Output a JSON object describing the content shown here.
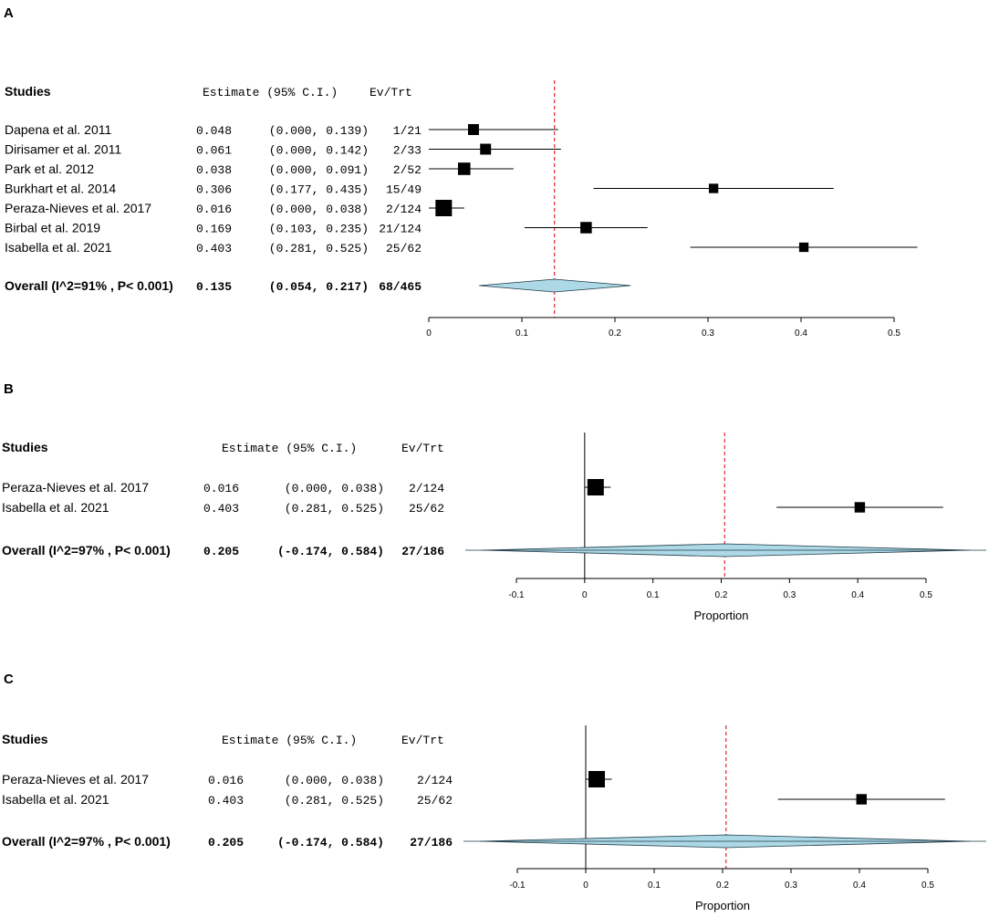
{
  "colors": {
    "ci_line": "#000000",
    "marker": "#000000",
    "reference_line": "#e8202a",
    "diamond_fill": "#add8e6",
    "diamond_stroke": "#1f3b47"
  },
  "chart_data": [
    {
      "type": "forest",
      "panel_label": "A",
      "headers": {
        "studies": "Studies",
        "estimate": "Estimate (95% C.I.)",
        "events": "Ev/Trt"
      },
      "studies": [
        {
          "name": "Dapena et al. 2011",
          "estimate": 0.048,
          "lower": 0.0,
          "upper": 0.139,
          "estimate_text": "0.048",
          "ci_text": "(0.000, 0.139)",
          "events": "1/21",
          "weight": 0.45
        },
        {
          "name": "Dirisamer et al. 2011",
          "estimate": 0.061,
          "lower": 0.0,
          "upper": 0.142,
          "estimate_text": "0.061",
          "ci_text": "(0.000, 0.142)",
          "events": "2/33",
          "weight": 0.45
        },
        {
          "name": "Park et al. 2012",
          "estimate": 0.038,
          "lower": 0.0,
          "upper": 0.091,
          "estimate_text": "0.038",
          "ci_text": "(0.000, 0.091)",
          "events": "2/52",
          "weight": 0.6
        },
        {
          "name": "Burkhart et al. 2014",
          "estimate": 0.306,
          "lower": 0.177,
          "upper": 0.435,
          "estimate_text": "0.306",
          "ci_text": "(0.177, 0.435)",
          "events": "15/49",
          "weight": 0.3
        },
        {
          "name": "Peraza-Nieves et al. 2017",
          "estimate": 0.016,
          "lower": 0.0,
          "upper": 0.038,
          "estimate_text": "0.016",
          "ci_text": "(0.000, 0.038)",
          "events": "2/124",
          "weight": 1.0
        },
        {
          "name": "Birbal et al. 2019",
          "estimate": 0.169,
          "lower": 0.103,
          "upper": 0.235,
          "estimate_text": "0.169",
          "ci_text": "(0.103, 0.235)",
          "events": "21/124",
          "weight": 0.5
        },
        {
          "name": "Isabella et al. 2021",
          "estimate": 0.403,
          "lower": 0.281,
          "upper": 0.525,
          "estimate_text": "0.403",
          "ci_text": "(0.281, 0.525)",
          "events": "25/62",
          "weight": 0.3
        }
      ],
      "overall": {
        "label": "Overall (I^2=91% , P< 0.001)",
        "estimate": 0.135,
        "lower": 0.054,
        "upper": 0.217,
        "estimate_text": "0.135",
        "ci_text": "(0.054, 0.217)",
        "events": "68/465"
      },
      "reference_line": 0.135,
      "x_ticks": [
        0,
        0.1,
        0.2,
        0.3,
        0.4,
        0.5
      ],
      "x_tick_labels": [
        "0",
        "0.1",
        "0.2",
        "0.3",
        "0.4",
        "0.5"
      ],
      "xlim": [
        0,
        0.5
      ],
      "xlabel": "",
      "zero_line": false
    },
    {
      "type": "forest",
      "panel_label": "B",
      "headers": {
        "studies": "Studies",
        "estimate": "Estimate (95% C.I.)",
        "events": "Ev/Trt"
      },
      "studies": [
        {
          "name": "Peraza-Nieves et al. 2017",
          "estimate": 0.016,
          "lower": 0.0,
          "upper": 0.038,
          "estimate_text": "0.016",
          "ci_text": "(0.000, 0.038)",
          "events": "2/124",
          "weight": 1.0
        },
        {
          "name": "Isabella et al. 2021",
          "estimate": 0.403,
          "lower": 0.281,
          "upper": 0.525,
          "estimate_text": "0.403",
          "ci_text": "(0.281, 0.525)",
          "events": "25/62",
          "weight": 0.4
        }
      ],
      "overall": {
        "label": "Overall (I^2=97% , P< 0.001)",
        "estimate": 0.205,
        "lower": -0.174,
        "upper": 0.584,
        "estimate_text": "0.205",
        "ci_text": "(-0.174, 0.584)",
        "events": "27/186"
      },
      "reference_line": 0.205,
      "x_ticks": [
        -0.1,
        0,
        0.1,
        0.2,
        0.3,
        0.4,
        0.5
      ],
      "x_tick_labels": [
        "-0.1",
        "0",
        "0.1",
        "0.2",
        "0.3",
        "0.4",
        "0.5"
      ],
      "xlim": [
        -0.1,
        0.5
      ],
      "xlabel": "Proportion",
      "zero_line": true
    },
    {
      "type": "forest",
      "panel_label": "C",
      "headers": {
        "studies": "Studies",
        "estimate": "Estimate (95% C.I.)",
        "events": "Ev/Trt"
      },
      "studies": [
        {
          "name": "Peraza-Nieves et al. 2017",
          "estimate": 0.016,
          "lower": 0.0,
          "upper": 0.038,
          "estimate_text": "0.016",
          "ci_text": "(0.000, 0.038)",
          "events": "2/124",
          "weight": 1.0
        },
        {
          "name": "Isabella et al. 2021",
          "estimate": 0.403,
          "lower": 0.281,
          "upper": 0.525,
          "estimate_text": "0.403",
          "ci_text": "(0.281, 0.525)",
          "events": "25/62",
          "weight": 0.4
        }
      ],
      "overall": {
        "label": "Overall (I^2=97% , P< 0.001)",
        "estimate": 0.205,
        "lower": -0.174,
        "upper": 0.584,
        "estimate_text": "0.205",
        "ci_text": "(-0.174, 0.584)",
        "events": "27/186"
      },
      "reference_line": 0.205,
      "x_ticks": [
        -0.1,
        0,
        0.1,
        0.2,
        0.3,
        0.4,
        0.5
      ],
      "x_tick_labels": [
        "-0.1",
        "0",
        "0.1",
        "0.2",
        "0.3",
        "0.4",
        "0.5"
      ],
      "xlim": [
        -0.1,
        0.5
      ],
      "xlabel": "Proportion",
      "zero_line": true
    }
  ]
}
